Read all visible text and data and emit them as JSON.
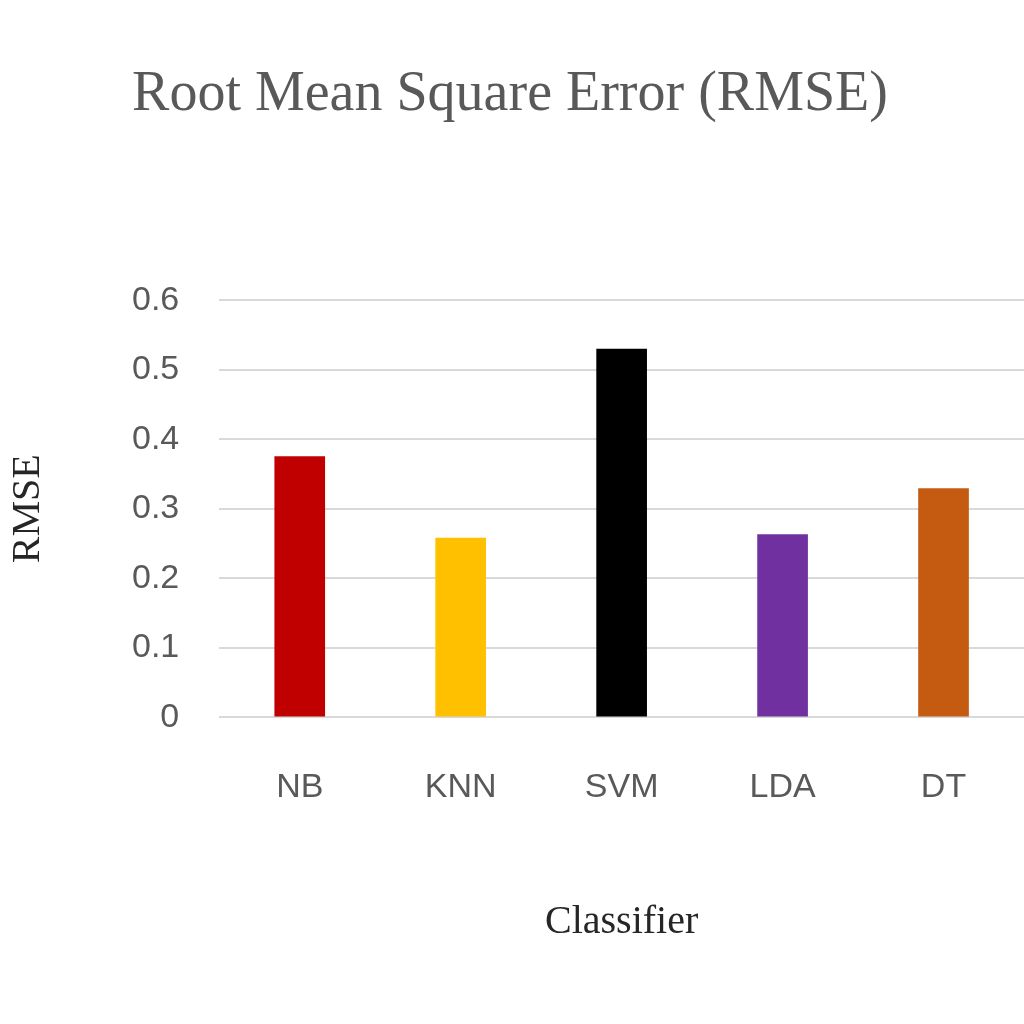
{
  "chart_data": {
    "type": "bar",
    "title": "Root Mean Square Error (RMSE)",
    "xlabel": "Classifier",
    "ylabel": "RMSE",
    "categories": [
      "NB",
      "KNN",
      "SVM",
      "LDA",
      "DT"
    ],
    "values": [
      0.375,
      0.258,
      0.53,
      0.263,
      0.329
    ],
    "colors": [
      "#c00000",
      "#ffc000",
      "#000000",
      "#7030a0",
      "#c55a11"
    ],
    "ylim": [
      0,
      0.6
    ],
    "yticks": [
      0,
      0.1,
      0.2,
      0.3,
      0.4,
      0.5,
      0.6
    ],
    "grid": "y",
    "legend": false
  }
}
